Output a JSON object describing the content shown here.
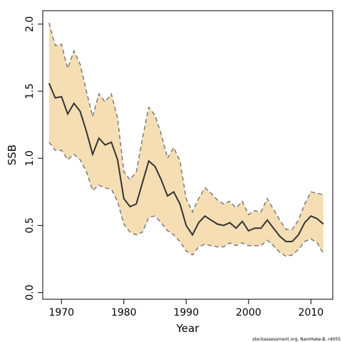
{
  "chart_data": {
    "type": "area",
    "xlabel": "Year",
    "ylabel": "SSB",
    "xlim": [
      1967,
      2013.5
    ],
    "ylim": [
      -0.05,
      2.1
    ],
    "x_ticks": [
      1970,
      1980,
      1990,
      2000,
      2010
    ],
    "y_ticks": [
      0.0,
      0.5,
      1.0,
      1.5,
      2.0
    ],
    "x_tick_labels": [
      "1970",
      "1980",
      "1990",
      "2000",
      "2010"
    ],
    "y_tick_labels": [
      "0.0",
      "0.5",
      "1.0",
      "1.5",
      "2.0"
    ],
    "grid": false,
    "x": [
      1968,
      1969,
      1970,
      1971,
      1972,
      1973,
      1974,
      1975,
      1976,
      1977,
      1978,
      1979,
      1980,
      1981,
      1982,
      1983,
      1984,
      1985,
      1986,
      1987,
      1988,
      1989,
      1990,
      1991,
      1992,
      1993,
      1994,
      1995,
      1996,
      1997,
      1998,
      1999,
      2000,
      2001,
      2002,
      2003,
      2004,
      2005,
      2006,
      2007,
      2008,
      2009,
      2010,
      2011,
      2012
    ],
    "series": [
      {
        "values": [
          1.56,
          1.45,
          1.46,
          1.33,
          1.41,
          1.35,
          1.2,
          1.03,
          1.15,
          1.1,
          1.12,
          0.99,
          0.7,
          0.64,
          0.66,
          0.82,
          0.98,
          0.94,
          0.84,
          0.72,
          0.75,
          0.66,
          0.5,
          0.43,
          0.52,
          0.57,
          0.54,
          0.51,
          0.5,
          0.52,
          0.48,
          0.53,
          0.46,
          0.48,
          0.48,
          0.54,
          0.48,
          0.42,
          0.38,
          0.38,
          0.43,
          0.52,
          0.57,
          0.55,
          0.51
        ],
        "color": "#333333"
      }
    ],
    "band": {
      "upper": [
        2.01,
        1.84,
        1.85,
        1.67,
        1.8,
        1.7,
        1.5,
        1.31,
        1.48,
        1.42,
        1.48,
        1.3,
        0.9,
        0.84,
        0.9,
        1.15,
        1.38,
        1.32,
        1.18,
        1.0,
        1.08,
        0.98,
        0.7,
        0.6,
        0.7,
        0.78,
        0.74,
        0.69,
        0.66,
        0.68,
        0.63,
        0.68,
        0.58,
        0.61,
        0.6,
        0.7,
        0.62,
        0.54,
        0.47,
        0.47,
        0.54,
        0.66,
        0.75,
        0.74,
        0.73
      ],
      "lower": [
        1.12,
        1.06,
        1.06,
        0.99,
        1.03,
        0.99,
        0.9,
        0.76,
        0.8,
        0.78,
        0.77,
        0.68,
        0.51,
        0.45,
        0.43,
        0.45,
        0.56,
        0.57,
        0.52,
        0.46,
        0.43,
        0.38,
        0.31,
        0.28,
        0.34,
        0.36,
        0.35,
        0.34,
        0.34,
        0.37,
        0.35,
        0.37,
        0.35,
        0.35,
        0.35,
        0.39,
        0.35,
        0.3,
        0.27,
        0.28,
        0.32,
        0.38,
        0.4,
        0.37,
        0.29
      ],
      "fill": "#F5DEB3",
      "edge_color": "#7a7a7a"
    }
  },
  "footnote": "stockassessment.org, NamHake-B, r4055"
}
